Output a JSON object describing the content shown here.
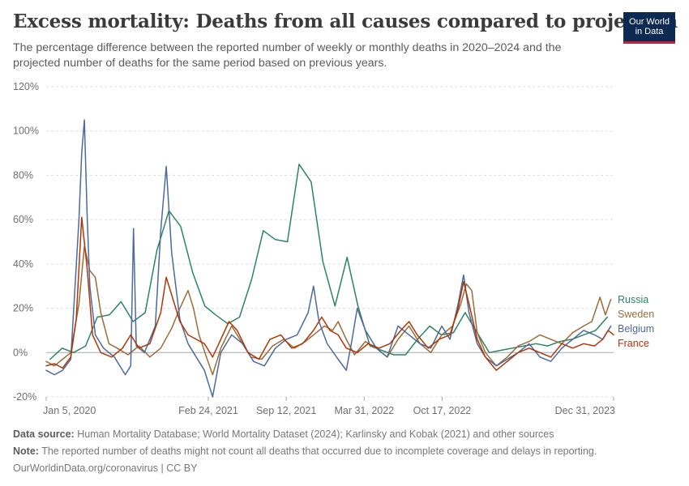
{
  "header": {
    "title": "Excess mortality: Deaths from all causes compared to projection",
    "subtitle": "The percentage difference between the reported number of weekly or monthly deaths in 2020–2024 and the projected number of deaths for the same period based on previous years.",
    "logo_line1": "Our World",
    "logo_line2": "in Data"
  },
  "footer": {
    "source_label": "Data source:",
    "source_text": "Human Mortality Database; World Mortality Dataset (2024); Karlinsky and Kobak (2021) and other sources",
    "note_label": "Note:",
    "note_text": "The reported number of deaths might not count all deaths that occurred due to incomplete coverage and delays in reporting.",
    "credit": "OurWorldinData.org/coronavirus | CC BY"
  },
  "colors": {
    "Russia": "#2c8465",
    "Sweden": "#996d39",
    "Belgium": "#4c6a9c",
    "France": "#b13507"
  },
  "chart_data": {
    "type": "line",
    "x_type": "date",
    "xlim": [
      "2020-01-05",
      "2023-12-31"
    ],
    "ylim": [
      -20,
      120
    ],
    "yticks": [
      -20,
      0,
      20,
      40,
      60,
      80,
      100,
      120
    ],
    "ytick_labels": [
      "-20%",
      "0%",
      "20%",
      "40%",
      "60%",
      "80%",
      "100%",
      "120%"
    ],
    "xticks": [
      "2020-01-05",
      "2021-02-24",
      "2021-09-12",
      "2022-03-31",
      "2022-10-17",
      "2023-12-31"
    ],
    "xtick_labels": [
      "Jan 5, 2020",
      "Feb 24, 2021",
      "Sep 12, 2021",
      "Mar 31, 2022",
      "Oct 17, 2022",
      "Dec 31, 2023"
    ],
    "grid": "horizontal dashed",
    "legend": "right, labels at line ends",
    "series": [
      {
        "name": "Russia",
        "points": [
          [
            "2020-01-15",
            -3
          ],
          [
            "2020-02-15",
            2
          ],
          [
            "2020-03-15",
            0
          ],
          [
            "2020-04-15",
            3
          ],
          [
            "2020-05-15",
            16
          ],
          [
            "2020-06-15",
            17
          ],
          [
            "2020-07-15",
            23
          ],
          [
            "2020-08-15",
            14
          ],
          [
            "2020-09-15",
            18
          ],
          [
            "2020-10-15",
            46
          ],
          [
            "2020-11-15",
            64
          ],
          [
            "2020-12-15",
            57
          ],
          [
            "2021-01-15",
            36
          ],
          [
            "2021-02-15",
            21
          ],
          [
            "2021-03-15",
            17
          ],
          [
            "2021-04-15",
            13
          ],
          [
            "2021-05-15",
            16
          ],
          [
            "2021-06-15",
            33
          ],
          [
            "2021-07-15",
            55
          ],
          [
            "2021-08-15",
            51
          ],
          [
            "2021-09-15",
            50
          ],
          [
            "2021-10-15",
            85
          ],
          [
            "2021-11-15",
            77
          ],
          [
            "2021-12-15",
            41
          ],
          [
            "2022-01-15",
            21
          ],
          [
            "2022-02-15",
            43
          ],
          [
            "2022-03-15",
            21
          ],
          [
            "2022-04-15",
            3
          ],
          [
            "2022-05-15",
            1
          ],
          [
            "2022-06-15",
            -1
          ],
          [
            "2022-07-15",
            -1
          ],
          [
            "2022-08-15",
            6
          ],
          [
            "2022-09-15",
            12
          ],
          [
            "2022-10-15",
            8
          ],
          [
            "2022-11-15",
            9
          ],
          [
            "2022-12-15",
            18
          ],
          [
            "2023-01-15",
            9
          ],
          [
            "2023-02-15",
            0
          ],
          [
            "2023-03-15",
            1
          ],
          [
            "2023-04-15",
            2
          ],
          [
            "2023-05-15",
            3
          ],
          [
            "2023-06-15",
            4
          ],
          [
            "2023-07-15",
            3
          ],
          [
            "2023-08-15",
            5
          ],
          [
            "2023-09-15",
            6
          ],
          [
            "2023-10-15",
            8
          ],
          [
            "2023-11-15",
            10
          ],
          [
            "2023-12-15",
            16
          ]
        ]
      },
      {
        "name": "Sweden",
        "points": [
          [
            "2020-01-05",
            -4
          ],
          [
            "2020-01-26",
            -6
          ],
          [
            "2020-02-16",
            -3
          ],
          [
            "2020-03-08",
            0
          ],
          [
            "2020-03-29",
            22
          ],
          [
            "2020-04-12",
            48
          ],
          [
            "2020-04-26",
            37
          ],
          [
            "2020-05-10",
            34
          ],
          [
            "2020-05-24",
            18
          ],
          [
            "2020-06-14",
            4
          ],
          [
            "2020-07-05",
            2
          ],
          [
            "2020-08-02",
            -1
          ],
          [
            "2020-08-30",
            3
          ],
          [
            "2020-09-27",
            -2
          ],
          [
            "2020-10-25",
            2
          ],
          [
            "2020-11-22",
            11
          ],
          [
            "2020-12-13",
            20
          ],
          [
            "2021-01-03",
            28
          ],
          [
            "2021-01-17",
            20
          ],
          [
            "2021-01-31",
            8
          ],
          [
            "2021-02-21",
            -3
          ],
          [
            "2021-03-07",
            -10
          ],
          [
            "2021-03-28",
            2
          ],
          [
            "2021-04-25",
            12
          ],
          [
            "2021-05-16",
            6
          ],
          [
            "2021-06-13",
            -2
          ],
          [
            "2021-07-11",
            -3
          ],
          [
            "2021-08-08",
            3
          ],
          [
            "2021-09-05",
            6
          ],
          [
            "2021-10-03",
            2
          ],
          [
            "2021-10-31",
            5
          ],
          [
            "2021-11-28",
            9
          ],
          [
            "2021-12-19",
            12
          ],
          [
            "2022-01-09",
            10
          ],
          [
            "2022-01-23",
            14
          ],
          [
            "2022-02-13",
            6
          ],
          [
            "2022-03-06",
            -1
          ],
          [
            "2022-04-03",
            5
          ],
          [
            "2022-05-01",
            2
          ],
          [
            "2022-05-29",
            -2
          ],
          [
            "2022-06-26",
            6
          ],
          [
            "2022-07-24",
            12
          ],
          [
            "2022-08-21",
            4
          ],
          [
            "2022-09-18",
            0
          ],
          [
            "2022-10-16",
            8
          ],
          [
            "2022-11-13",
            12
          ],
          [
            "2022-12-04",
            22
          ],
          [
            "2022-12-18",
            31
          ],
          [
            "2023-01-01",
            28
          ],
          [
            "2023-01-15",
            9
          ],
          [
            "2023-02-05",
            0
          ],
          [
            "2023-03-05",
            -6
          ],
          [
            "2023-04-02",
            -2
          ],
          [
            "2023-04-30",
            3
          ],
          [
            "2023-05-28",
            5
          ],
          [
            "2023-06-25",
            8
          ],
          [
            "2023-07-23",
            6
          ],
          [
            "2023-08-20",
            4
          ],
          [
            "2023-09-17",
            9
          ],
          [
            "2023-10-15",
            12
          ],
          [
            "2023-11-05",
            14
          ],
          [
            "2023-11-26",
            25
          ],
          [
            "2023-12-10",
            17
          ],
          [
            "2023-12-24",
            24
          ]
        ]
      },
      {
        "name": "Belgium",
        "points": [
          [
            "2020-01-05",
            -8
          ],
          [
            "2020-01-26",
            -10
          ],
          [
            "2020-02-16",
            -8
          ],
          [
            "2020-03-08",
            -3
          ],
          [
            "2020-03-29",
            60
          ],
          [
            "2020-04-05",
            90
          ],
          [
            "2020-04-12",
            105
          ],
          [
            "2020-04-19",
            62
          ],
          [
            "2020-04-26",
            30
          ],
          [
            "2020-05-10",
            8
          ],
          [
            "2020-05-31",
            2
          ],
          [
            "2020-06-28",
            -2
          ],
          [
            "2020-07-26",
            -10
          ],
          [
            "2020-08-09",
            -6
          ],
          [
            "2020-08-16",
            56
          ],
          [
            "2020-08-23",
            3
          ],
          [
            "2020-09-13",
            0
          ],
          [
            "2020-10-11",
            12
          ],
          [
            "2020-10-25",
            55
          ],
          [
            "2020-11-08",
            84
          ],
          [
            "2020-11-22",
            45
          ],
          [
            "2020-12-13",
            15
          ],
          [
            "2021-01-03",
            4
          ],
          [
            "2021-01-24",
            -2
          ],
          [
            "2021-02-14",
            -8
          ],
          [
            "2021-03-07",
            -20
          ],
          [
            "2021-03-28",
            0
          ],
          [
            "2021-04-25",
            8
          ],
          [
            "2021-05-23",
            4
          ],
          [
            "2021-06-20",
            -4
          ],
          [
            "2021-07-18",
            -6
          ],
          [
            "2021-08-15",
            2
          ],
          [
            "2021-09-12",
            6
          ],
          [
            "2021-10-10",
            8
          ],
          [
            "2021-11-07",
            18
          ],
          [
            "2021-11-21",
            30
          ],
          [
            "2021-12-05",
            14
          ],
          [
            "2021-12-26",
            4
          ],
          [
            "2022-01-23",
            -3
          ],
          [
            "2022-02-13",
            -8
          ],
          [
            "2022-02-27",
            5
          ],
          [
            "2022-03-13",
            20
          ],
          [
            "2022-04-03",
            10
          ],
          [
            "2022-05-01",
            2
          ],
          [
            "2022-05-29",
            -2
          ],
          [
            "2022-06-26",
            12
          ],
          [
            "2022-07-24",
            8
          ],
          [
            "2022-08-21",
            4
          ],
          [
            "2022-09-18",
            2
          ],
          [
            "2022-10-16",
            12
          ],
          [
            "2022-11-06",
            6
          ],
          [
            "2022-11-27",
            22
          ],
          [
            "2022-12-11",
            35
          ],
          [
            "2022-12-25",
            18
          ],
          [
            "2023-01-15",
            4
          ],
          [
            "2023-02-05",
            -2
          ],
          [
            "2023-03-05",
            -6
          ],
          [
            "2023-04-02",
            -3
          ],
          [
            "2023-04-30",
            0
          ],
          [
            "2023-05-28",
            4
          ],
          [
            "2023-06-25",
            -2
          ],
          [
            "2023-07-23",
            -4
          ],
          [
            "2023-08-20",
            2
          ],
          [
            "2023-09-17",
            6
          ],
          [
            "2023-10-15",
            10
          ],
          [
            "2023-11-12",
            8
          ],
          [
            "2023-12-03",
            6
          ],
          [
            "2023-12-24",
            12
          ]
        ]
      },
      {
        "name": "France",
        "points": [
          [
            "2020-01-05",
            -6
          ],
          [
            "2020-01-26",
            -5
          ],
          [
            "2020-02-16",
            -7
          ],
          [
            "2020-03-08",
            -2
          ],
          [
            "2020-03-22",
            15
          ],
          [
            "2020-04-05",
            61
          ],
          [
            "2020-04-19",
            38
          ],
          [
            "2020-05-03",
            8
          ],
          [
            "2020-05-24",
            0
          ],
          [
            "2020-06-21",
            -2
          ],
          [
            "2020-07-19",
            2
          ],
          [
            "2020-08-09",
            8
          ],
          [
            "2020-08-30",
            2
          ],
          [
            "2020-09-27",
            4
          ],
          [
            "2020-10-25",
            18
          ],
          [
            "2020-11-08",
            34
          ],
          [
            "2020-11-22",
            26
          ],
          [
            "2020-12-13",
            14
          ],
          [
            "2021-01-03",
            8
          ],
          [
            "2021-01-24",
            6
          ],
          [
            "2021-02-14",
            4
          ],
          [
            "2021-03-07",
            -2
          ],
          [
            "2021-03-28",
            6
          ],
          [
            "2021-04-18",
            14
          ],
          [
            "2021-05-09",
            10
          ],
          [
            "2021-06-06",
            0
          ],
          [
            "2021-07-04",
            -3
          ],
          [
            "2021-08-01",
            6
          ],
          [
            "2021-08-29",
            8
          ],
          [
            "2021-09-26",
            2
          ],
          [
            "2021-10-24",
            4
          ],
          [
            "2021-11-21",
            10
          ],
          [
            "2021-12-12",
            16
          ],
          [
            "2022-01-02",
            10
          ],
          [
            "2022-01-23",
            8
          ],
          [
            "2022-02-13",
            2
          ],
          [
            "2022-03-13",
            0
          ],
          [
            "2022-04-10",
            4
          ],
          [
            "2022-05-08",
            2
          ],
          [
            "2022-06-05",
            4
          ],
          [
            "2022-07-03",
            10
          ],
          [
            "2022-07-24",
            14
          ],
          [
            "2022-08-14",
            8
          ],
          [
            "2022-09-11",
            2
          ],
          [
            "2022-10-09",
            6
          ],
          [
            "2022-11-06",
            8
          ],
          [
            "2022-11-27",
            20
          ],
          [
            "2022-12-11",
            32
          ],
          [
            "2022-12-25",
            22
          ],
          [
            "2023-01-15",
            6
          ],
          [
            "2023-02-05",
            -2
          ],
          [
            "2023-03-05",
            -8
          ],
          [
            "2023-04-02",
            -4
          ],
          [
            "2023-04-30",
            0
          ],
          [
            "2023-05-28",
            2
          ],
          [
            "2023-06-25",
            0
          ],
          [
            "2023-07-23",
            -2
          ],
          [
            "2023-08-20",
            4
          ],
          [
            "2023-09-17",
            2
          ],
          [
            "2023-10-15",
            4
          ],
          [
            "2023-11-12",
            3
          ],
          [
            "2023-12-03",
            6
          ],
          [
            "2023-12-17",
            10
          ],
          [
            "2023-12-31",
            8
          ]
        ]
      }
    ]
  }
}
